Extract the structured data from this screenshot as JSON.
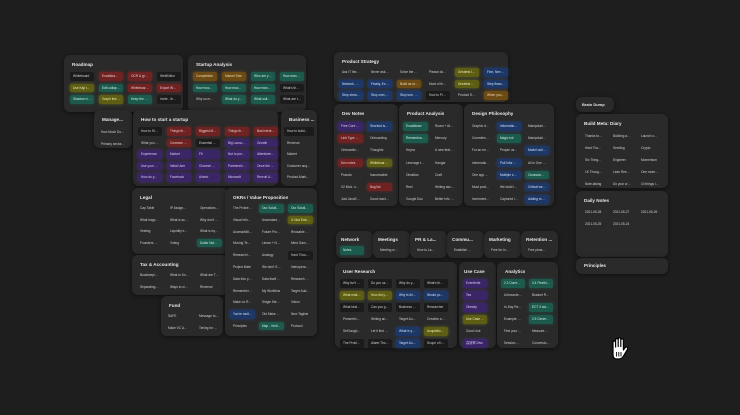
{
  "board": {
    "background": "#1e1e1e",
    "card_color": "#2a2a2a"
  },
  "colors": {
    "red": "#6e2222",
    "teal": "#1b5a4c",
    "gold": "#6b5a17",
    "olive": "#5d5d14",
    "purple": "#3a2566",
    "blue": "#1d3766"
  },
  "cards": {
    "roadmap": {
      "title": "Roadmap",
      "items": [
        "Whiteboard",
        "Excalidraw a...",
        "OCR & graph...",
        "WebEditor",
        "Use Kaji to do...",
        "Edit collapse...",
        "Whiteboard Pr...",
        "Export Whiteb...",
        "Shadow views...",
        "Graph lines UI",
        "Keep the con...",
        "Invite - they..."
      ]
    },
    "startup_analysis": {
      "title": "Startup Analysis",
      "items": [
        "Competition",
        "Market Size",
        "Who are your...",
        "How many us...",
        "How much m...",
        "How much fu...",
        "How many pe...",
        "What's their a...",
        "Why so many...",
        "What do you...",
        "What suitabi...",
        "What are the..."
      ]
    },
    "manage": {
      "title": "Manage...",
      "items": [
        "How Much Do...",
        "Primary sector..."
      ]
    },
    "how_to_start": {
      "title": "How to start a startup",
      "items": [
        "How to Start ...",
        "Things that ar...",
        "Biggest Mista...",
        "Things that ar...",
        "Bad intentions...",
        "What you kno...",
        "Common Bad ...",
        "Essential Star...",
        "Big Launch A...",
        "Growth",
        "Experience",
        "Market",
        "Fit",
        "Not to pre-Se...",
        "Attentiveness",
        "Use your suffi...",
        "Initial User",
        "Channel Prici...",
        "Partnerships...",
        "Once the user...",
        "How do you fi...",
        "Facebook",
        "Airbnb",
        "Microsoft",
        "Recruit Users ..."
      ]
    },
    "business": {
      "title": "Business ...",
      "items": [
        "How to build...",
        "Revenue",
        "Market",
        "Customer acq...",
        "Product-Mark..."
      ]
    },
    "legal": {
      "title": "Legal",
      "items": [
        "Cap Table",
        "IP Assignmen...",
        "Operations of...",
        "What happen...",
        "What is accel...",
        "Why don't ca...",
        "Vesting",
        "Liquidity events",
        "What is equity?",
        "Founders ag...",
        "Voting",
        "Dollar Note S..."
      ]
    },
    "okrs": {
      "title": "OKRs / Value Proposition",
      "items": [
        "The Problem ...",
        "Our Solution...",
        "Our Solution...",
        "Visual Inform...",
        "Ascendant C...",
        "X-Nod Eating...",
        "Accessibility ...",
        "Future Proof ...",
        "Reusable Desi...",
        "Moving Text f...",
        "Linear + Need...",
        "Mind Game +...",
        "Research is a...",
        "Analogy",
        "Hard Thoughts",
        "Project Mate",
        "We don't Sur...",
        "Interoperability",
        "Data Into pro...",
        "Data itself vi...",
        "Research = L...",
        "Remember for...",
        "My Workflow",
        "Target Audien...",
        "Make no Rethin",
        "Single Step fo...",
        "Vision",
        "You're multi fi...",
        "Old Make App...",
        "New Tagline",
        "Principles",
        "Map - Vertic...",
        "Protocol"
      ]
    },
    "tax": {
      "title": "Tax & Accounting",
      "items": [
        "Bookkeeping ...",
        "What to Know...",
        "What are Tax...",
        "Separating co...",
        "Ways to simpl...",
        "Revenue"
      ]
    },
    "fund": {
      "title": "Fund",
      "items": [
        "SAFE",
        "Message to S...",
        "Make VC App...",
        "Timing for Ser..."
      ]
    },
    "product_strategy": {
      "title": "Product Strategy",
      "items": [
        "Ask IT the pro...",
        "Never ask us...",
        "Solve the pro...",
        "Please don't l...",
        "Greatest leak...",
        "Fine, Never kn...",
        "Network, write...",
        "Finally, it's so...",
        "Build as start",
        "Most of the g...",
        "Greatest Lesso...",
        "Step flows, the...",
        "Stop show, to...",
        "Stop over, clo...",
        "Stop turn, get...",
        "How to Plan a...",
        "Product State...",
        "When you thi..."
      ]
    },
    "dev_notes": {
      "title": "Dev Notes",
      "items": [
        "Free Core for ...",
        "Shortcut is a ...",
        "Link Type Lim...",
        "Onboarding",
        "Onboarding v...",
        "Thoughts",
        "Dev notes",
        "Whiteboard T...",
        "Pseudo",
        "Inaccessible",
        "V2 Mod. naye...",
        "Bug list",
        "Just JavaScript",
        "Good react &..."
      ]
    },
    "product_analysis": {
      "title": "Product Analysis",
      "items": [
        "Excalidraw",
        "Roam + Athens",
        "Remembrance",
        "Mercury",
        "Heyns",
        "A new feature...",
        "Leverage the ...",
        "Hangar",
        "Obsidian",
        "Craft",
        "Reel",
        "Writing assista...",
        "Google Doc",
        "Better Info Wr..."
      ]
    },
    "design_philosophy": {
      "title": "Design Philosophy",
      "items": [
        "Graphic desig...",
        "Information a...",
        "Manipulation ...",
        "Commitment...",
        "Magic Ink",
        "Manipulation...",
        "For an envyin...",
        "People use so...",
        "Model outlines...",
        "Information a...",
        "Pull Informatio...",
        "All in One app",
        "One app with ...",
        "Multiple scen...",
        "Occasionally a...",
        "Most products...",
        "We build inde...",
        "Critical we let l...",
        "Incremental a...",
        "Captured ide...",
        "Adding more i..."
      ]
    },
    "network": {
      "title": "Network",
      "items": [
        "Notes"
      ]
    },
    "meetings": {
      "title": "Meetings",
      "items": [
        "Meeting with..."
      ]
    },
    "pr": {
      "title": "PR & La...",
      "items": [
        "How to Laun..."
      ]
    },
    "community": {
      "title": "Commu...",
      "items": [
        "Establish Sc..."
      ]
    },
    "marketing": {
      "title": "Marketing",
      "items": [
        "Free for Inter..."
      ]
    },
    "retention": {
      "title": "Retention ...",
      "items": [
        "Free phases..."
      ]
    },
    "user_research": {
      "title": "User Research",
      "items": [
        "Why isn't your...",
        "Do you use a...",
        "Why do you s...",
        "What's the pr...",
        "What makes y...",
        "How did you ...",
        "Why is this pr...",
        "Would you rel...",
        "What kind of ...",
        "Can you give...",
        "Business and...",
        "Researcher",
        "Presenting th...",
        "Writing and n...",
        "Target Audien...",
        "Creative author",
        "Self taught &...",
        "Let it find yo...",
        "What is your ...",
        "Acquisition S...",
        "The Problem",
        "Alarm Thoughts",
        "Target Audien...",
        "Scope of the..."
      ]
    },
    "use_case": {
      "title": "Use Case",
      "items": [
        "Eventbrite",
        "Tea",
        "Obesity",
        "Use Case Ans...",
        "Good Link",
        "高效率 Divs"
      ]
    },
    "analytics": {
      "title": "Analytics",
      "items": [
        "2.3 Current U...",
        "3.4 Flexible...",
        "Unbounded R...",
        "Bracket Reten...",
        "In-Day Retenti...",
        "ECT 3 ways t...",
        "Example: an...",
        "2.5 Generate...",
        "Find your mo...",
        "Measure stick...",
        "Session metrics",
        "Conversion ra..."
      ]
    },
    "brain_dump": {
      "title": "Brain Dump"
    },
    "build_meta_diary": {
      "title": "Build Meta: Diary",
      "items": [
        "Thanks to be...",
        "Building a pro...",
        "Launch on de...",
        "Hard Thoughts",
        "Seeding",
        "Crypto",
        "Six Things Ho...",
        "Engineer",
        "Momentum",
        "1K Thoughts",
        "Lean Research",
        "One more fea...",
        "Note-taking",
        "Do your work",
        "10 things I've l..."
      ]
    },
    "daily_notes": {
      "title": "Daily Notes",
      "items": [
        "2021-05-28",
        "2021-05-27",
        "2021-05-26",
        "2021-05-25",
        "2021-05-24"
      ]
    },
    "principles": {
      "title": "Principles"
    }
  },
  "cursor": {
    "icon": "hand-grab-icon"
  }
}
